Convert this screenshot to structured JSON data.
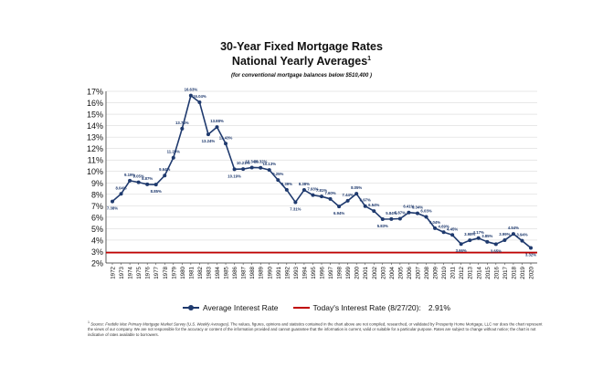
{
  "header": {
    "title_line1": "30-Year Fixed Mortgage Rates",
    "title_line2": "National Yearly Averages",
    "title_sup": "1",
    "subtitle": "(for conventional mortgage balances below $510,400 )"
  },
  "legend": {
    "series_label": "Average Interest Rate",
    "reference_label": "Today's Interest Rate (8/27/20):",
    "reference_value": "2.91%"
  },
  "footnote": {
    "marker": "1",
    "source": "Source: Freddie Mac Primary Mortgage Market Survey (U.S. Weekly Averages).",
    "text": "The values, figures, opinions and statistics contained in the chart above are not compiled, researched, or validated by Prosperity Home Mortgage, LLC nor does the chart represent the views of our company. We are not responsible for the accuracy or content of the information provided and cannot guarantee that the information is current, valid or suitable for a particular purpose. Rates are subject to change without notice; the chart is not indicative of rates available to borrowers."
  },
  "colors": {
    "series": "#1f3a6e",
    "reference": "#c00000",
    "grid": "#d0d0d0",
    "axis": "#333333"
  },
  "chart_data": {
    "type": "line",
    "y_ticks": [
      "2%",
      "3%",
      "4%",
      "5%",
      "6%",
      "7%",
      "8%",
      "9%",
      "10%",
      "11%",
      "12%",
      "13%",
      "14%",
      "15%",
      "16%",
      "17%"
    ],
    "ylim": [
      2,
      17
    ],
    "grid": true,
    "legend_position": "bottom",
    "reference_line": {
      "name": "Today's Interest Rate (8/27/20):",
      "value": 2.91
    },
    "series": [
      {
        "name": "Average Interest Rate",
        "x": [
          "1972",
          "1973",
          "1974",
          "1975",
          "1976",
          "1977",
          "1978",
          "1979",
          "1980",
          "1981",
          "1982",
          "1983",
          "1984",
          "1985",
          "1986",
          "1987",
          "1988",
          "1989",
          "1990",
          "1991",
          "1992",
          "1993",
          "1994",
          "1995",
          "1996",
          "1997",
          "1998",
          "1999",
          "2000",
          "2001",
          "2002",
          "2003",
          "2004",
          "2005",
          "2006",
          "2007",
          "2008",
          "2009",
          "2010",
          "2011",
          "2012",
          "2013",
          "2014",
          "2015",
          "2016",
          "2017",
          "2018",
          "2019",
          "2020"
        ],
        "values": [
          7.38,
          8.04,
          9.19,
          9.05,
          8.87,
          8.85,
          9.64,
          11.2,
          13.74,
          16.63,
          16.04,
          13.24,
          13.88,
          12.43,
          10.19,
          10.21,
          10.34,
          10.32,
          10.13,
          9.25,
          8.39,
          7.31,
          8.38,
          7.93,
          7.81,
          7.6,
          6.94,
          7.44,
          8.05,
          6.97,
          6.54,
          5.83,
          5.84,
          5.87,
          6.41,
          6.34,
          6.03,
          5.04,
          4.69,
          4.45,
          3.66,
          3.98,
          4.17,
          3.85,
          3.65,
          3.99,
          4.54,
          3.94,
          3.32
        ],
        "labels": [
          "7.38%",
          "8.04%",
          "9.19%",
          "9.05%",
          "8.87%",
          "8.85%",
          "9.64%",
          "11.20%",
          "13.74%",
          "16.63%",
          "16.04%",
          "13.24%",
          "13.88%",
          "12.43%",
          "10.19%",
          "10.21%",
          "10.34%",
          "10.32%",
          "10.13%",
          "9.25%",
          "8.39%",
          "7.31%",
          "8.38%",
          "7.93%",
          "7.81%",
          "7.60%",
          "6.94%",
          "7.44%",
          "8.05%",
          "6.97%",
          "6.54%",
          "5.83%",
          "5.84%",
          "5.87%",
          "6.41%",
          "6.34%",
          "6.03%",
          "5.04%",
          "4.69%",
          "4.45%",
          "3.66%",
          "3.98%",
          "4.17%",
          "3.85%",
          "3.65%",
          "3.99%",
          "4.54%",
          "3.94%",
          "3.32%"
        ]
      }
    ]
  }
}
